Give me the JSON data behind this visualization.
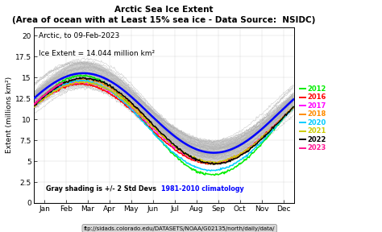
{
  "title": "Arctic Sea Ice Extent",
  "subtitle": "(Area of ocean with at Least 15% sea ice - Data Source:  NSIDC)",
  "annotation1": "Arctic, to 09-Feb-2023",
  "annotation2": "Ice Extent = 14.044 million km²",
  "ylabel": "Extent (millions km²)",
  "ylim": [
    0,
    21
  ],
  "yticks": [
    0,
    2.5,
    5,
    7.5,
    10,
    12.5,
    15,
    17.5,
    20
  ],
  "ytick_labels": [
    "0",
    "2.5",
    "5",
    "7.5",
    "10",
    "12.5",
    "15",
    "17.5",
    "20"
  ],
  "months": [
    "Jan",
    "Feb",
    "Mar",
    "Apr",
    "May",
    "Jun",
    "Jul",
    "Aug",
    "Sep",
    "Oct",
    "Nov",
    "Dec"
  ],
  "gray_label": "Gray shading is +/- 2 Std Devs",
  "clim_label": "1981-2010 climatology",
  "clim_color": "#0000FF",
  "url_label": "ftp://sidads.colorado.edu/DATASETS/NOAA/G02135/north/daily/data/",
  "years_legend": [
    "2012",
    "2016",
    "2017",
    "2018",
    "2020",
    "2021",
    "2022",
    "2023"
  ],
  "years_colors": [
    "#00EE00",
    "#FF0000",
    "#FF00FF",
    "#FF8C00",
    "#00CCFF",
    "#CCCC00",
    "#000000",
    "#FF1493"
  ],
  "background_color": "#ffffff"
}
